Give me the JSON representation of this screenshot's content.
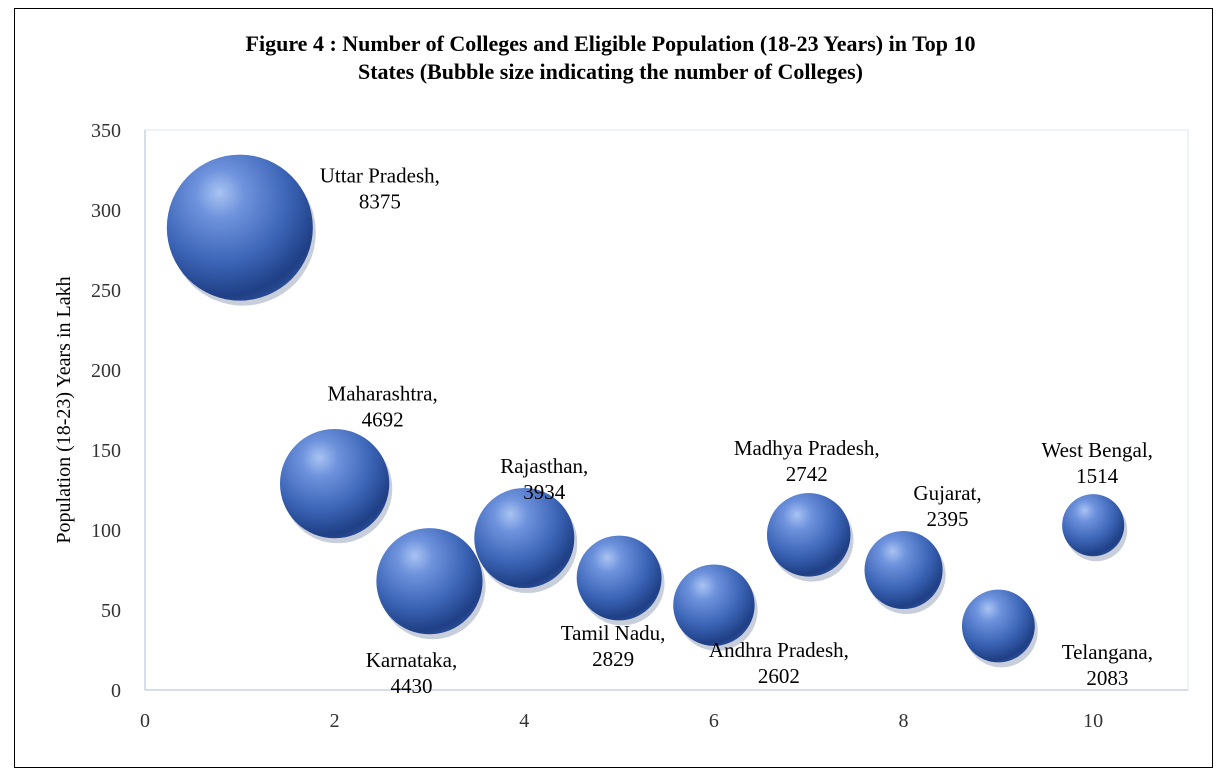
{
  "chart_data": {
    "type": "bubble",
    "title_lines": [
      "Figure 4 : Number of Colleges and Eligible Population (18-23 Years) in Top 10",
      "States (Bubble size indicating the number of Colleges)"
    ],
    "xlabel": "",
    "ylabel": "Population (18-23) Years in Lakh",
    "xlim": [
      0,
      11
    ],
    "ylim": [
      0,
      350
    ],
    "xticks": [
      0,
      2,
      4,
      6,
      8,
      10
    ],
    "yticks": [
      0,
      50,
      100,
      150,
      200,
      250,
      300,
      350
    ],
    "grid": false,
    "bubble_color": "#3d66b8",
    "points": [
      {
        "state": "Uttar Pradesh",
        "x": 1,
        "y": 289,
        "colleges": 8375,
        "label_line1": "Uttar Pradesh,",
        "label_line2": "8375"
      },
      {
        "state": "Maharashtra",
        "x": 2,
        "y": 129,
        "colleges": 4692,
        "label_line1": "Maharashtra,",
        "label_line2": "4692"
      },
      {
        "state": "Karnataka",
        "x": 3,
        "y": 68,
        "colleges": 4430,
        "label_line1": "Karnataka,",
        "label_line2": "4430"
      },
      {
        "state": "Rajasthan",
        "x": 4,
        "y": 95,
        "colleges": 3934,
        "label_line1": "Rajasthan,",
        "label_line2": "3934"
      },
      {
        "state": "Tamil Nadu",
        "x": 5,
        "y": 70,
        "colleges": 2829,
        "label_line1": "Tamil Nadu,",
        "label_line2": "2829"
      },
      {
        "state": "Andhra Pradesh",
        "x": 6,
        "y": 53,
        "colleges": 2602,
        "label_line1": "Andhra Pradesh,",
        "label_line2": "2602"
      },
      {
        "state": "Madhya Pradesh",
        "x": 7,
        "y": 97,
        "colleges": 2742,
        "label_line1": "Madhya Pradesh,",
        "label_line2": "2742"
      },
      {
        "state": "Gujarat",
        "x": 8,
        "y": 75,
        "colleges": 2395,
        "label_line1": "Gujarat,",
        "label_line2": "2395"
      },
      {
        "state": "Telangana",
        "x": 9,
        "y": 40,
        "colleges": 2083,
        "label_line1": "Telangana,",
        "label_line2": "2083"
      },
      {
        "state": "West Bengal",
        "x": 10,
        "y": 103,
        "colleges": 1514,
        "label_line1": "West Bengal,",
        "label_line2": "1514"
      }
    ]
  }
}
